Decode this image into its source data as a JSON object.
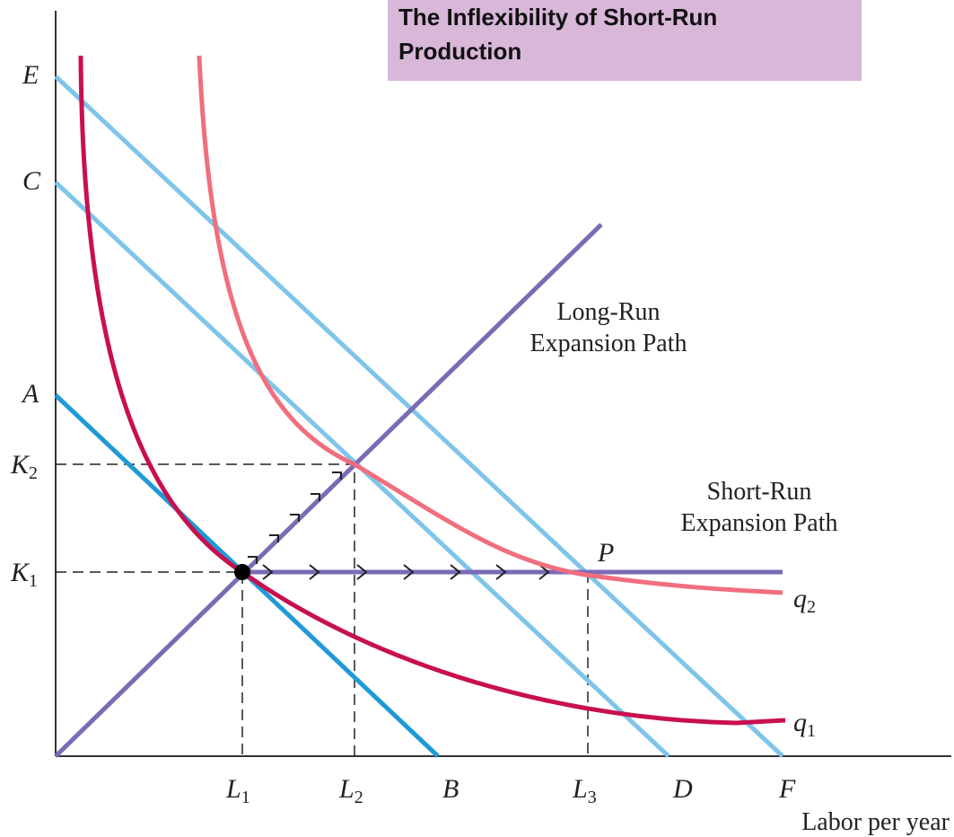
{
  "title": "The Inflexibility of Short-Run Production",
  "axis": {
    "x_label": "Labor per year"
  },
  "intercepts": {
    "E": "E",
    "C": "C",
    "A": "A",
    "B": "B",
    "D": "D",
    "F": "F"
  },
  "levels": {
    "K2": {
      "letter": "K",
      "sub": "2"
    },
    "K1": {
      "letter": "K",
      "sub": "1"
    },
    "L1": {
      "letter": "L",
      "sub": "1"
    },
    "L2": {
      "letter": "L",
      "sub": "2"
    },
    "L3": {
      "letter": "L",
      "sub": "3"
    }
  },
  "paths": {
    "long_run": [
      "Long-Run",
      "Expansion Path"
    ],
    "short_run": [
      "Short-Run",
      "Expansion Path"
    ]
  },
  "point": "P",
  "isoquants": {
    "q2": {
      "letter": "q",
      "sub": "2"
    },
    "q1": {
      "letter": "q",
      "sub": "1"
    }
  }
}
